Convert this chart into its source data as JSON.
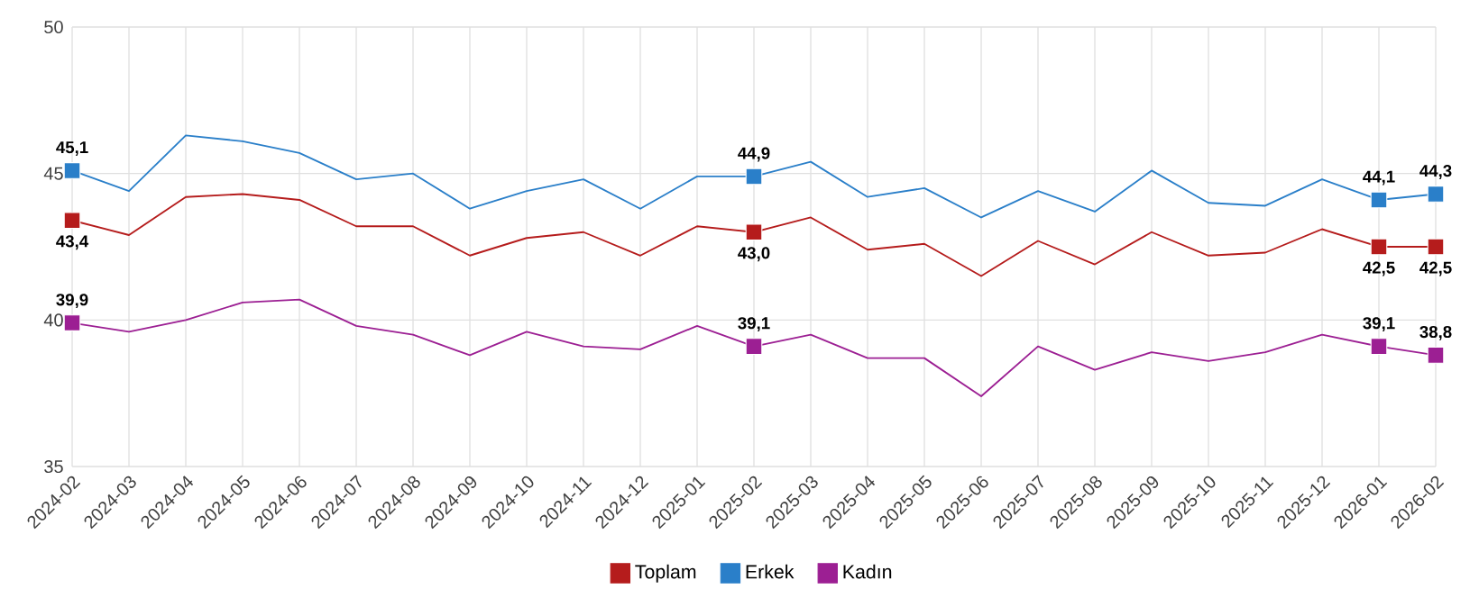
{
  "chart_data": {
    "type": "line",
    "categories": [
      "2024-02",
      "2024-03",
      "2024-04",
      "2024-05",
      "2024-06",
      "2024-07",
      "2024-08",
      "2024-09",
      "2024-10",
      "2024-11",
      "2024-12",
      "2025-01",
      "2025-02",
      "2025-03",
      "2025-04",
      "2025-05",
      "2025-06",
      "2025-07",
      "2025-08",
      "2025-09",
      "2025-10",
      "2025-11",
      "2025-12",
      "2026-01",
      "2026-02"
    ],
    "series": [
      {
        "name": "Toplam",
        "color": "#b51c1c",
        "values": [
          43.4,
          42.9,
          44.2,
          44.3,
          44.1,
          43.2,
          43.2,
          42.2,
          42.8,
          43.0,
          42.2,
          43.2,
          43.0,
          43.5,
          42.4,
          42.6,
          41.5,
          42.7,
          41.9,
          43.0,
          42.2,
          42.3,
          43.1,
          42.5,
          42.5
        ],
        "value_labels": [
          "43,4",
          null,
          null,
          null,
          null,
          null,
          null,
          null,
          null,
          null,
          null,
          null,
          "43,0",
          null,
          null,
          null,
          null,
          null,
          null,
          null,
          null,
          null,
          null,
          "42,5",
          "42,5"
        ]
      },
      {
        "name": "Erkek",
        "color": "#2a7fc9",
        "values": [
          45.1,
          44.4,
          46.3,
          46.1,
          45.7,
          44.8,
          45.0,
          43.8,
          44.4,
          44.8,
          43.8,
          44.9,
          44.9,
          45.4,
          44.2,
          44.5,
          43.5,
          44.4,
          43.7,
          45.1,
          44.0,
          43.9,
          44.8,
          44.1,
          44.3
        ],
        "value_labels": [
          "45,1",
          null,
          null,
          null,
          null,
          null,
          null,
          null,
          null,
          null,
          null,
          null,
          "44,9",
          null,
          null,
          null,
          null,
          null,
          null,
          null,
          null,
          null,
          null,
          "44,1",
          "44,3"
        ]
      },
      {
        "name": "Kadın",
        "color": "#9c1f93",
        "values": [
          39.9,
          39.6,
          40.0,
          40.6,
          40.7,
          39.8,
          39.5,
          38.8,
          39.6,
          39.1,
          39.0,
          39.8,
          39.1,
          39.5,
          38.7,
          38.7,
          37.4,
          39.1,
          38.3,
          38.9,
          38.6,
          38.9,
          39.5,
          39.1,
          38.8
        ],
        "value_labels": [
          "39,9",
          null,
          null,
          null,
          null,
          null,
          null,
          null,
          null,
          null,
          null,
          null,
          "39,1",
          null,
          null,
          null,
          null,
          null,
          null,
          null,
          null,
          null,
          null,
          "39,1",
          "38,8"
        ]
      }
    ],
    "ylim": [
      35,
      50
    ],
    "yticks": [
      35,
      40,
      45,
      50
    ],
    "grid": true,
    "legend": "bottom",
    "line_style": "solid"
  }
}
